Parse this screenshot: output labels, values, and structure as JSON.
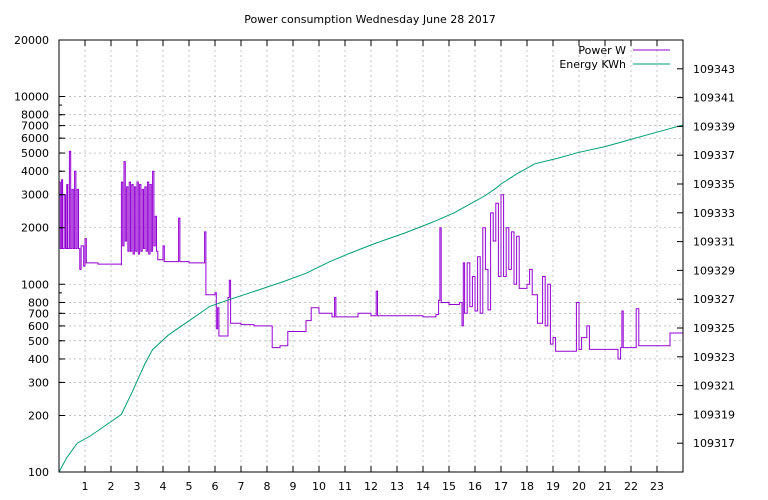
{
  "chart_data": {
    "type": "line",
    "title": "Power consumption Wednesday June 28 2017",
    "xlabel": "",
    "ylabel": "",
    "y2label": "",
    "xlim": [
      0,
      24
    ],
    "ylim": [
      100,
      20000
    ],
    "y_scale": "log",
    "y2lim": [
      109315,
      109345
    ],
    "grid": true,
    "legend_position": "top-right",
    "x_ticks": [
      1,
      2,
      3,
      4,
      5,
      6,
      7,
      8,
      9,
      10,
      11,
      12,
      13,
      14,
      15,
      16,
      17,
      18,
      19,
      20,
      21,
      22,
      23
    ],
    "y_ticks": [
      100,
      200,
      300,
      400,
      500,
      600,
      700,
      800,
      1000,
      2000,
      3000,
      4000,
      5000,
      6000,
      7000,
      8000,
      10000,
      20000
    ],
    "y2_ticks": [
      109317,
      109319,
      109321,
      109323,
      109325,
      109327,
      109329,
      109331,
      109333,
      109335,
      109337,
      109339,
      109341,
      109343
    ],
    "series": [
      {
        "name": "Power W",
        "axis": "y",
        "color": "#9400d3",
        "step": true,
        "points": [
          [
            0,
            3500
          ],
          [
            0.05,
            1550
          ],
          [
            0.1,
            3600
          ],
          [
            0.14,
            1550
          ],
          [
            0.2,
            3000
          ],
          [
            0.25,
            1550
          ],
          [
            0.3,
            3400
          ],
          [
            0.34,
            1550
          ],
          [
            0.4,
            5100
          ],
          [
            0.45,
            1550
          ],
          [
            0.5,
            3200
          ],
          [
            0.55,
            1550
          ],
          [
            0.6,
            4000
          ],
          [
            0.65,
            1550
          ],
          [
            0.7,
            3200
          ],
          [
            0.75,
            1550
          ],
          [
            0.8,
            1200
          ],
          [
            0.85,
            1600
          ],
          [
            0.95,
            1250
          ],
          [
            1.0,
            1750
          ],
          [
            1.05,
            1300
          ],
          [
            1.5,
            1280
          ],
          [
            2.4,
            1260
          ],
          [
            2.4,
            3500
          ],
          [
            2.45,
            1600
          ],
          [
            2.5,
            4500
          ],
          [
            2.55,
            1700
          ],
          [
            2.6,
            3300
          ],
          [
            2.65,
            1500
          ],
          [
            2.7,
            3500
          ],
          [
            2.75,
            1500
          ],
          [
            2.8,
            3400
          ],
          [
            2.85,
            1450
          ],
          [
            2.9,
            3300
          ],
          [
            2.95,
            1500
          ],
          [
            3.0,
            3500
          ],
          [
            3.05,
            1450
          ],
          [
            3.1,
            3400
          ],
          [
            3.15,
            1500
          ],
          [
            3.2,
            3200
          ],
          [
            3.25,
            1550
          ],
          [
            3.3,
            3300
          ],
          [
            3.35,
            1500
          ],
          [
            3.4,
            3500
          ],
          [
            3.45,
            1450
          ],
          [
            3.5,
            3400
          ],
          [
            3.55,
            1500
          ],
          [
            3.6,
            4000
          ],
          [
            3.65,
            1600
          ],
          [
            3.7,
            2300
          ],
          [
            3.75,
            1500
          ],
          [
            3.8,
            1350
          ],
          [
            4.0,
            1600
          ],
          [
            4.05,
            1320
          ],
          [
            4.5,
            1320
          ],
          [
            4.6,
            2250
          ],
          [
            4.65,
            1320
          ],
          [
            5.0,
            1300
          ],
          [
            5.3,
            1300
          ],
          [
            5.6,
            1900
          ],
          [
            5.65,
            880
          ],
          [
            6.0,
            900
          ],
          [
            6.05,
            580
          ],
          [
            6.1,
            750
          ],
          [
            6.15,
            530
          ],
          [
            6.5,
            850
          ],
          [
            6.55,
            1050
          ],
          [
            6.6,
            620
          ],
          [
            7.0,
            610
          ],
          [
            7.5,
            600
          ],
          [
            8.0,
            600
          ],
          [
            8.2,
            460
          ],
          [
            8.5,
            470
          ],
          [
            8.8,
            560
          ],
          [
            9.5,
            640
          ],
          [
            9.7,
            750
          ],
          [
            10.0,
            700
          ],
          [
            10.5,
            670
          ],
          [
            10.6,
            850
          ],
          [
            10.65,
            670
          ],
          [
            11.0,
            670
          ],
          [
            11.5,
            700
          ],
          [
            12.0,
            680
          ],
          [
            12.2,
            920
          ],
          [
            12.25,
            680
          ],
          [
            13.0,
            680
          ],
          [
            13.5,
            680
          ],
          [
            14.0,
            670
          ],
          [
            14.5,
            690
          ],
          [
            14.6,
            820
          ],
          [
            14.65,
            2000
          ],
          [
            14.7,
            800
          ],
          [
            15.0,
            780
          ],
          [
            15.4,
            800
          ],
          [
            15.5,
            600
          ],
          [
            15.55,
            1300
          ],
          [
            15.6,
            700
          ],
          [
            15.7,
            1300
          ],
          [
            15.8,
            760
          ],
          [
            15.9,
            1100
          ],
          [
            16.0,
            720
          ],
          [
            16.1,
            1400
          ],
          [
            16.2,
            700
          ],
          [
            16.3,
            2000
          ],
          [
            16.4,
            1200
          ],
          [
            16.5,
            730
          ],
          [
            16.6,
            2400
          ],
          [
            16.7,
            1700
          ],
          [
            16.8,
            2700
          ],
          [
            16.9,
            1100
          ],
          [
            17.0,
            3000
          ],
          [
            17.1,
            1100
          ],
          [
            17.2,
            2000
          ],
          [
            17.3,
            1200
          ],
          [
            17.4,
            1900
          ],
          [
            17.5,
            1000
          ],
          [
            17.6,
            1800
          ],
          [
            17.7,
            950
          ],
          [
            18.0,
            1000
          ],
          [
            18.1,
            1200
          ],
          [
            18.2,
            880
          ],
          [
            18.4,
            620
          ],
          [
            18.6,
            1100
          ],
          [
            18.7,
            600
          ],
          [
            18.8,
            1000
          ],
          [
            18.9,
            480
          ],
          [
            19.0,
            520
          ],
          [
            19.1,
            440
          ],
          [
            19.5,
            440
          ],
          [
            19.9,
            800
          ],
          [
            20.0,
            450
          ],
          [
            20.1,
            520
          ],
          [
            20.3,
            600
          ],
          [
            20.4,
            450
          ],
          [
            21.0,
            450
          ],
          [
            21.5,
            400
          ],
          [
            21.6,
            460
          ],
          [
            21.65,
            720
          ],
          [
            21.7,
            460
          ],
          [
            22.0,
            460
          ],
          [
            22.2,
            740
          ],
          [
            22.3,
            470
          ],
          [
            23.0,
            470
          ],
          [
            23.5,
            550
          ],
          [
            24,
            550
          ]
        ]
      },
      {
        "name": "Energy KWh",
        "axis": "y2",
        "color": "#009e73",
        "step": false,
        "points": [
          [
            0,
            109315
          ],
          [
            0.3,
            109316
          ],
          [
            0.7,
            109317
          ],
          [
            1.2,
            109317.5
          ],
          [
            2.0,
            109318.5
          ],
          [
            2.4,
            109319
          ],
          [
            2.8,
            109320.5
          ],
          [
            3.3,
            109322.5
          ],
          [
            3.6,
            109323.5
          ],
          [
            4.2,
            109324.5
          ],
          [
            5.0,
            109325.5
          ],
          [
            5.8,
            109326.5
          ],
          [
            6.6,
            109327
          ],
          [
            7.6,
            109327.6
          ],
          [
            8.6,
            109328.2
          ],
          [
            9.5,
            109328.8
          ],
          [
            10.4,
            109329.6
          ],
          [
            11.2,
            109330.2
          ],
          [
            12.2,
            109330.9
          ],
          [
            13.3,
            109331.6
          ],
          [
            14.3,
            109332.3
          ],
          [
            15.2,
            109333
          ],
          [
            15.8,
            109333.6
          ],
          [
            16.4,
            109334.2
          ],
          [
            16.8,
            109334.7
          ],
          [
            17.0,
            109335
          ],
          [
            17.6,
            109335.7
          ],
          [
            18.3,
            109336.4
          ],
          [
            19.2,
            109336.8
          ],
          [
            20.0,
            109337.2
          ],
          [
            21.0,
            109337.6
          ],
          [
            22.0,
            109338.1
          ],
          [
            23.0,
            109338.6
          ],
          [
            24,
            109339.1
          ]
        ]
      }
    ]
  }
}
